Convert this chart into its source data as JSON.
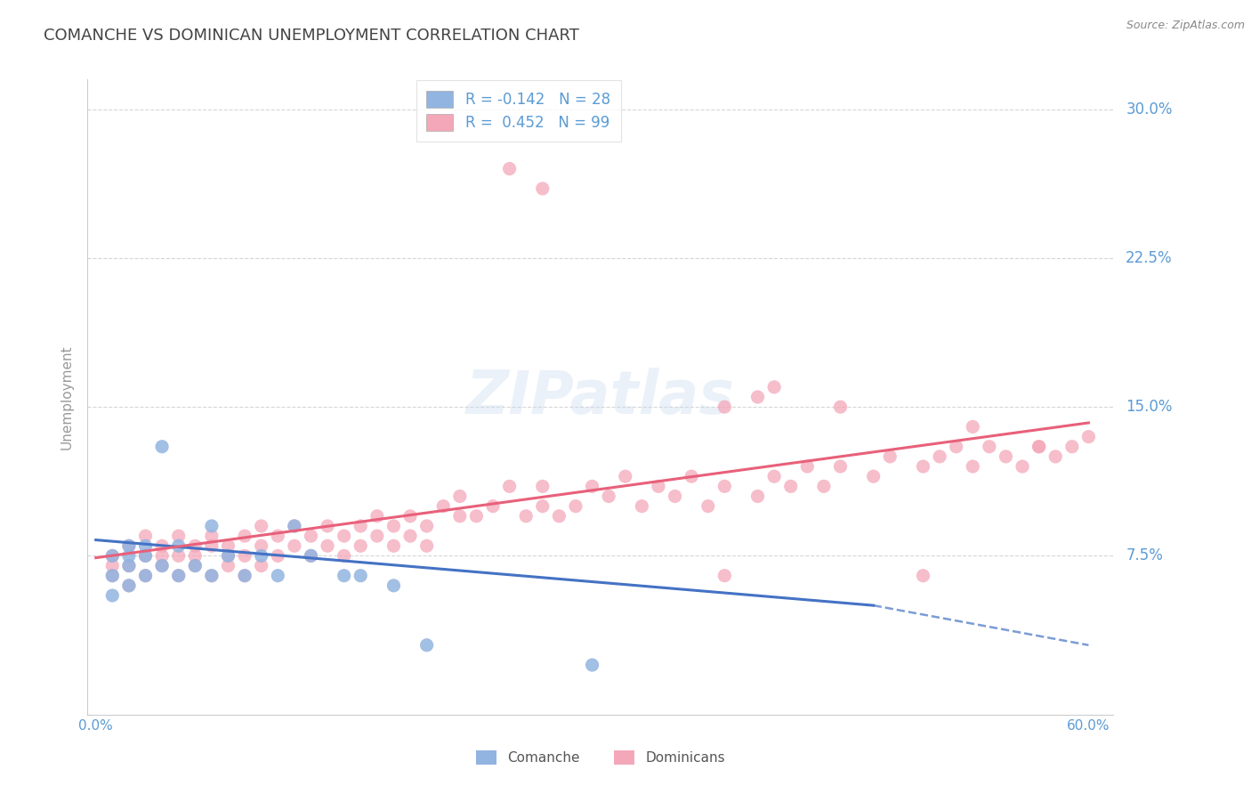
{
  "title": "COMANCHE VS DOMINICAN UNEMPLOYMENT CORRELATION CHART",
  "source": "Source: ZipAtlas.com",
  "xlabel_comanche": "Comanche",
  "xlabel_dominicans": "Dominicans",
  "ylabel": "Unemployment",
  "xlim": [
    -0.005,
    0.615
  ],
  "ylim": [
    -0.005,
    0.315
  ],
  "xticks_bottom": [
    0.0,
    0.6
  ],
  "xtick_labels_bottom": [
    "0.0%",
    "60.0%"
  ],
  "ytick_positions": [
    0.075,
    0.15,
    0.225,
    0.3
  ],
  "ytick_labels": [
    "7.5%",
    "15.0%",
    "22.5%",
    "30.0%"
  ],
  "grid_color": "#cccccc",
  "background_color": "#ffffff",
  "title_color": "#444444",
  "axis_label_color": "#5b9bd5",
  "comanche_color": "#92b4e0",
  "dominican_color": "#f4a7b9",
  "comanche_line_color": "#4472c4",
  "dominican_line_color": "#e8607a",
  "comanche_R": -0.142,
  "comanche_N": 28,
  "dominican_R": 0.452,
  "dominican_N": 99,
  "comanche_trend_x0": 0.0,
  "comanche_trend_y0": 0.083,
  "comanche_trend_x1": 0.47,
  "comanche_trend_y1": 0.05,
  "comanche_trend_dash_x1": 0.6,
  "comanche_trend_dash_y1": 0.03,
  "dominican_trend_x0": 0.0,
  "dominican_trend_y0": 0.074,
  "dominican_trend_x1": 0.6,
  "dominican_trend_y1": 0.142,
  "comanche_scatter_x": [
    0.01,
    0.01,
    0.01,
    0.02,
    0.02,
    0.02,
    0.02,
    0.03,
    0.03,
    0.03,
    0.04,
    0.04,
    0.05,
    0.05,
    0.06,
    0.07,
    0.07,
    0.08,
    0.09,
    0.1,
    0.11,
    0.12,
    0.13,
    0.15,
    0.16,
    0.18,
    0.2,
    0.3
  ],
  "comanche_scatter_y": [
    0.055,
    0.065,
    0.075,
    0.06,
    0.07,
    0.075,
    0.08,
    0.065,
    0.075,
    0.08,
    0.07,
    0.13,
    0.065,
    0.08,
    0.07,
    0.065,
    0.09,
    0.075,
    0.065,
    0.075,
    0.065,
    0.09,
    0.075,
    0.065,
    0.065,
    0.06,
    0.03,
    0.02
  ],
  "dominican_scatter_x": [
    0.01,
    0.01,
    0.01,
    0.02,
    0.02,
    0.02,
    0.03,
    0.03,
    0.03,
    0.04,
    0.04,
    0.04,
    0.05,
    0.05,
    0.05,
    0.06,
    0.06,
    0.06,
    0.07,
    0.07,
    0.07,
    0.08,
    0.08,
    0.08,
    0.09,
    0.09,
    0.09,
    0.1,
    0.1,
    0.1,
    0.11,
    0.11,
    0.12,
    0.12,
    0.13,
    0.13,
    0.14,
    0.14,
    0.15,
    0.15,
    0.16,
    0.16,
    0.17,
    0.17,
    0.18,
    0.18,
    0.19,
    0.19,
    0.2,
    0.2,
    0.21,
    0.22,
    0.22,
    0.23,
    0.24,
    0.25,
    0.26,
    0.27,
    0.27,
    0.28,
    0.29,
    0.3,
    0.31,
    0.32,
    0.33,
    0.34,
    0.35,
    0.36,
    0.37,
    0.38,
    0.38,
    0.4,
    0.41,
    0.42,
    0.43,
    0.44,
    0.45,
    0.47,
    0.48,
    0.5,
    0.51,
    0.52,
    0.53,
    0.54,
    0.55,
    0.56,
    0.57,
    0.58,
    0.59,
    0.6,
    0.25,
    0.27,
    0.38,
    0.4,
    0.41,
    0.45,
    0.5,
    0.53,
    0.57
  ],
  "dominican_scatter_y": [
    0.065,
    0.07,
    0.075,
    0.06,
    0.07,
    0.08,
    0.065,
    0.075,
    0.085,
    0.07,
    0.08,
    0.075,
    0.065,
    0.075,
    0.085,
    0.07,
    0.08,
    0.075,
    0.065,
    0.08,
    0.085,
    0.07,
    0.08,
    0.075,
    0.065,
    0.075,
    0.085,
    0.07,
    0.08,
    0.09,
    0.075,
    0.085,
    0.08,
    0.09,
    0.075,
    0.085,
    0.08,
    0.09,
    0.075,
    0.085,
    0.08,
    0.09,
    0.085,
    0.095,
    0.08,
    0.09,
    0.085,
    0.095,
    0.08,
    0.09,
    0.1,
    0.095,
    0.105,
    0.095,
    0.1,
    0.11,
    0.095,
    0.1,
    0.11,
    0.095,
    0.1,
    0.11,
    0.105,
    0.115,
    0.1,
    0.11,
    0.105,
    0.115,
    0.1,
    0.11,
    0.065,
    0.105,
    0.115,
    0.11,
    0.12,
    0.11,
    0.12,
    0.115,
    0.125,
    0.12,
    0.125,
    0.13,
    0.12,
    0.13,
    0.125,
    0.12,
    0.13,
    0.125,
    0.13,
    0.135,
    0.27,
    0.26,
    0.15,
    0.155,
    0.16,
    0.15,
    0.065,
    0.14,
    0.13
  ]
}
